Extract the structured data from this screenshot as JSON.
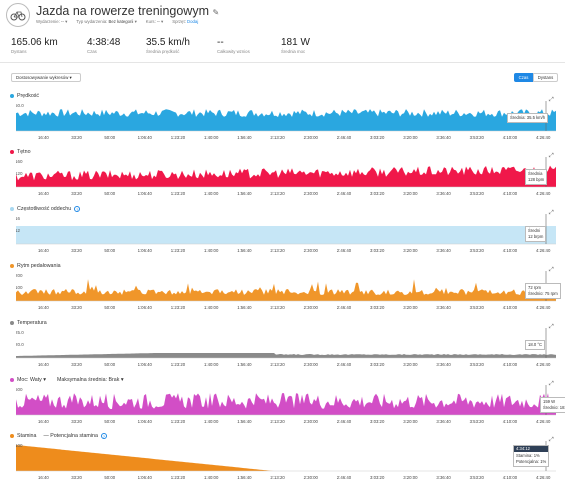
{
  "header": {
    "title": "Jazda na rowerze treningowym",
    "meta": [
      {
        "label": "Wydarzenie:",
        "value": "--"
      },
      {
        "label": "Typ wydarzenia:",
        "value": "Bez kategorii"
      },
      {
        "label": "Kurs:",
        "value": "--"
      },
      {
        "label": "Sprzęt:",
        "value": "Dodaj"
      }
    ]
  },
  "stats": [
    {
      "value": "165.06 km",
      "label": "Dystans"
    },
    {
      "value": "4:38:48",
      "label": "Czas"
    },
    {
      "value": "35.5 km/h",
      "label": "Średnia prędkość"
    },
    {
      "value": "--",
      "label": "Całkowity wznios"
    },
    {
      "value": "181 W",
      "label": "Średnia moc"
    }
  ],
  "toolbar": {
    "adjust_label": "Dostosowywanie wykresów",
    "time_label": "Czas",
    "distance_label": "Dystans"
  },
  "time_ticks": [
    "16:40",
    "33:20",
    "50:00",
    "1:06:40",
    "1:23:20",
    "1:40:00",
    "1:56:40",
    "2:13:20",
    "2:30:00",
    "2:46:40",
    "3:03:20",
    "3:20:00",
    "3:36:40",
    "3:53:20",
    "4:10:00",
    "4:26:40"
  ],
  "charts": [
    {
      "key": "speed",
      "title": "Prędkość",
      "color": "#2aa7e0",
      "ymax": "50.0",
      "ymid": "",
      "tip1": "Średnia: 35.5 km/h",
      "tip2": ""
    },
    {
      "key": "hr",
      "title": "Tętno",
      "color": "#f0184a",
      "ymax": "160",
      "ymid": "120",
      "tip1": "Średnia",
      "tip2": "128 bpm"
    },
    {
      "key": "breath",
      "title": "Częstotliwość oddechu",
      "color": "#a8d8f0",
      "ymax": "16",
      "ymid": "12",
      "tip1": "Średni",
      "tip2": "12 brpm"
    },
    {
      "key": "cad",
      "title": "Rytm pedałowania",
      "color": "#f0962a",
      "ymax": "200",
      "ymid": "100",
      "tip1": "72 rpm",
      "tip2": "Średnio: 75 rpm"
    },
    {
      "key": "temp",
      "title": "Temperatura",
      "color": "#8a8a8a",
      "ymax": "25.0",
      "ymid": "20.0",
      "tip1": "18.0 °C",
      "tip2": ""
    },
    {
      "key": "power",
      "title": "Moc: Waty",
      "extra": "Maksymalna średnia: Brak",
      "color": "#d24ec6",
      "ymax": "500",
      "ymid": "",
      "tip1": "159 W",
      "tip2": "Średnio: 181 W"
    },
    {
      "key": "stamina",
      "title": "Stamina",
      "extra": "Potencjalna stamina",
      "color": "#ee8c1c",
      "ymax": "100",
      "ymid": "",
      "tip1": "4:34:12",
      "tip2": "Stamina: 1%",
      "tip3": "Potencjalna: 1%"
    }
  ]
}
